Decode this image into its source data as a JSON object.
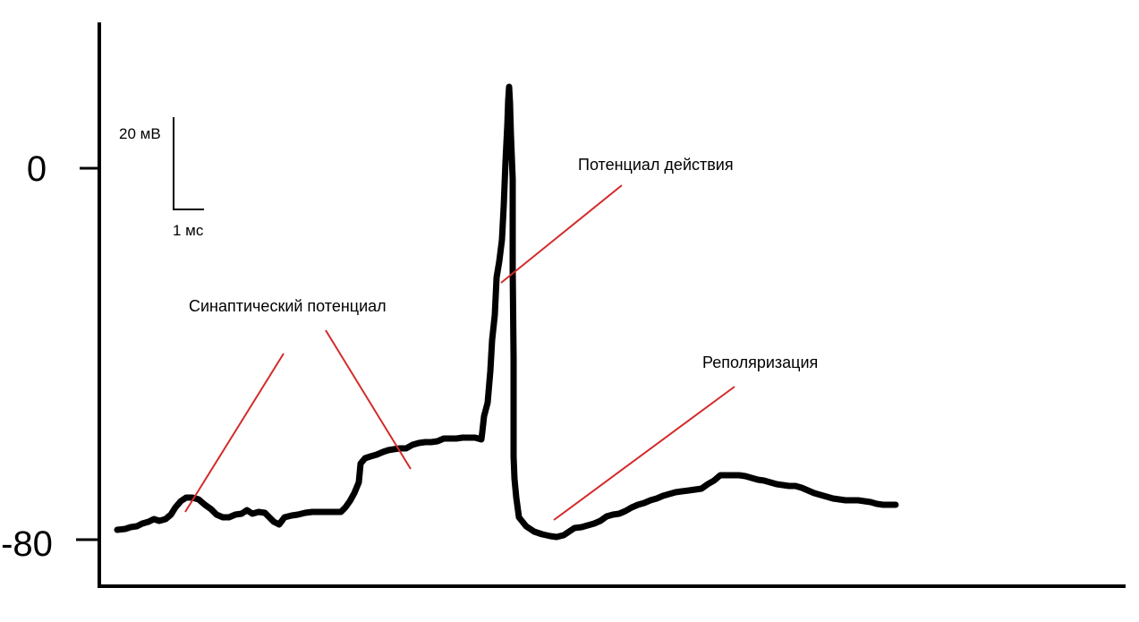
{
  "y_axis": {
    "tick_labels": [
      "0",
      "-80"
    ]
  },
  "scale_bar": {
    "voltage_label": "20 мВ",
    "time_label": "1 мс"
  },
  "annotations": {
    "synaptic": "Синаптический потенциал",
    "action": "Потенциал действия",
    "repolarization": "Реполяризация"
  },
  "colors": {
    "trace": "#000000",
    "axes": "#000000",
    "pointer": "#d42a2a"
  }
}
